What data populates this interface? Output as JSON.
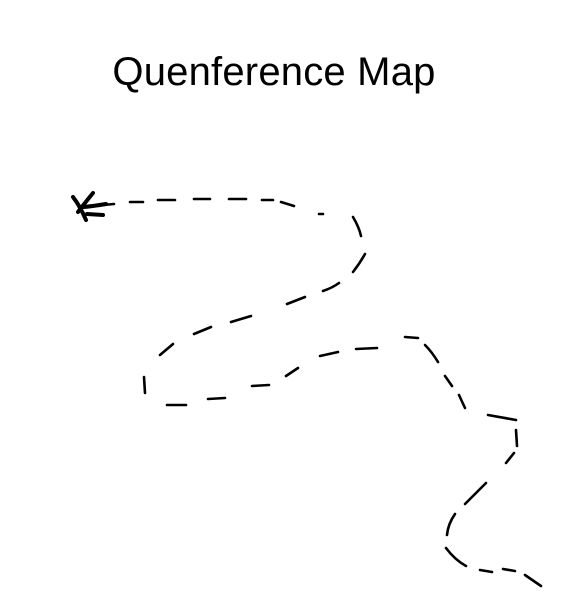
{
  "map": {
    "title": "Quenference Map",
    "ink_color": "#000000",
    "background_color": "#ffffff",
    "marker": "x-marks-the-spot"
  }
}
